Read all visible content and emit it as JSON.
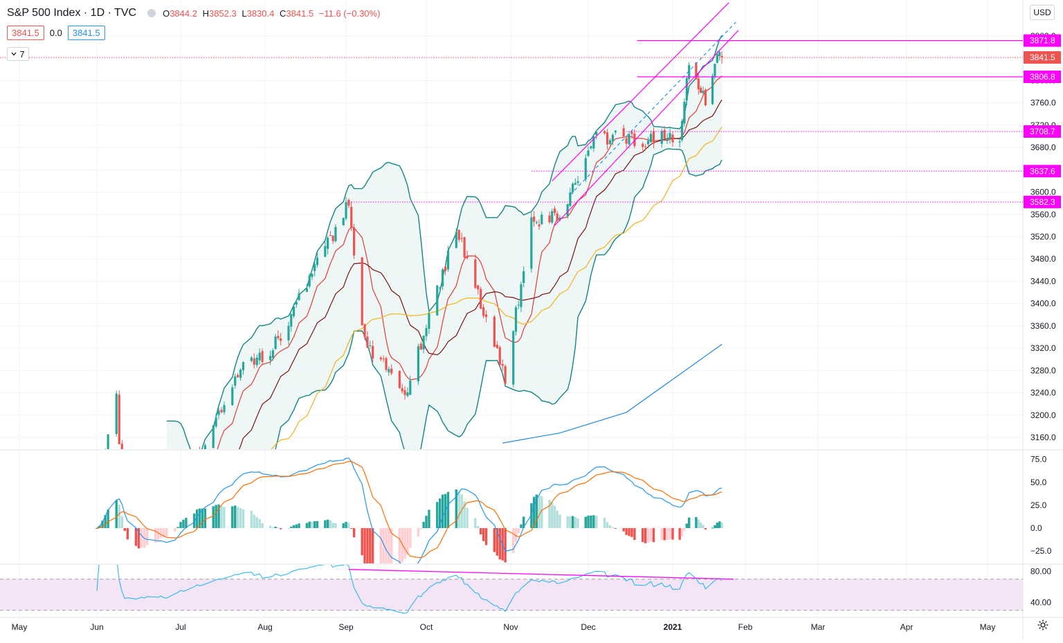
{
  "header": {
    "symbol": "S&P 500 Index · 1D · TVC",
    "open_label": "O",
    "open": "3844.2",
    "high_label": "H",
    "high": "3852.3",
    "low_label": "L",
    "low": "3830.4",
    "close_label": "C",
    "close": "3841.5",
    "change": "−11.6 (−0.30%)",
    "bid": "3841.5",
    "spread": "0.0",
    "ask": "3841.5",
    "indicators_count": "7",
    "currency": "USD"
  },
  "colors": {
    "up": "#26a69a",
    "down": "#ef5350",
    "magenta": "#ff00ff",
    "bb": "#138484",
    "bb_fill": "#e8f4f2",
    "ma_fast": "#e53935",
    "ma_mid": "#7b1010",
    "ma_slow": "#f2b21a",
    "ma_200": "#1e88e5",
    "macd": "#2196f3",
    "signal": "#ff6d00",
    "rsi": "#29b6f6",
    "rsi_band": "#f3e5f5"
  },
  "chart_data": {
    "type": "candlestick",
    "y_range": [
      3150,
      3900
    ],
    "price_ticks": [
      "3160.0",
      "3200.0",
      "3240.0",
      "3280.0",
      "3320.0",
      "3360.0",
      "3400.0",
      "3440.0",
      "3480.0",
      "3520.0",
      "3560.0",
      "3600.0",
      "3640.0",
      "3680.0",
      "3720.0",
      "3760.0",
      "3800.0",
      "3840.0",
      "3880.0"
    ],
    "price_labels": [
      {
        "value": 3871.8,
        "text": "3871.8",
        "color": "#ff00ff",
        "line": "solid"
      },
      {
        "value": 3841.5,
        "text": "3841.5",
        "color": "#ef5350",
        "line": "dotted"
      },
      {
        "value": 3806.8,
        "text": "3806.8",
        "color": "#ff00ff",
        "line": "solid"
      },
      {
        "value": 3708.7,
        "text": "3708.7",
        "color": "#ff00ff",
        "line": "dotted"
      },
      {
        "value": 3637.6,
        "text": "3637.6",
        "color": "#ff00ff",
        "line": "dotted"
      },
      {
        "value": 3582.3,
        "text": "3582.3",
        "color": "#ff00ff",
        "line": "dotted"
      }
    ],
    "x_ticks": [
      "May",
      "Jun",
      "Jul",
      "Aug",
      "Sep",
      "Oct",
      "Nov",
      "Dec",
      "2021",
      "Feb",
      "Mar",
      "Apr",
      "May"
    ],
    "macd_range": [
      -30,
      80
    ],
    "macd_ticks": [
      "75.0",
      "50.0",
      "25.0",
      "0.0",
      "−25.0"
    ],
    "rsi_range": [
      30,
      85
    ],
    "rsi_ticks": [
      "80.00",
      "40.00"
    ],
    "rsi_band": [
      30,
      70
    ],
    "price_anchors": [
      [
        "2020-06-01",
        3055
      ],
      [
        "2020-06-08",
        3232
      ],
      [
        "2020-06-11",
        3002
      ],
      [
        "2020-06-26",
        3009
      ],
      [
        "2020-07-22",
        3276
      ],
      [
        "2020-08-05",
        3327
      ],
      [
        "2020-09-02",
        3580
      ],
      [
        "2020-09-08",
        3331
      ],
      [
        "2020-09-23",
        3237
      ],
      [
        "2020-10-12",
        3535
      ],
      [
        "2020-10-30",
        3270
      ],
      [
        "2020-11-09",
        3550
      ],
      [
        "2020-11-20",
        3557
      ],
      [
        "2020-12-04",
        3699
      ],
      [
        "2020-12-21",
        3694
      ],
      [
        "2021-01-04",
        3700
      ],
      [
        "2021-01-08",
        3824
      ],
      [
        "2021-01-11",
        3799
      ],
      [
        "2021-01-15",
        3768
      ],
      [
        "2021-01-21",
        3853
      ],
      [
        "2021-01-22",
        3841.5
      ]
    ],
    "ma200_anchors": [
      [
        "2020-10-29",
        3150
      ],
      [
        "2020-11-20",
        3168
      ],
      [
        "2020-12-15",
        3205
      ],
      [
        "2021-01-22",
        3327
      ]
    ],
    "channels": [
      {
        "from": [
          "2020-11-17",
          3620
        ],
        "to": [
          "2021-01-25",
          3940
        ],
        "color": "#ff00ff",
        "dash": false
      },
      {
        "from": [
          "2020-11-18",
          3540
        ],
        "to": [
          "2021-01-29",
          3890
        ],
        "color": "#ff00ff",
        "dash": false
      },
      {
        "from": [
          "2020-11-24",
          3595
        ],
        "to": [
          "2021-01-28",
          3905
        ],
        "color": "#2196f3",
        "dash": true
      }
    ],
    "rsi_trend": {
      "from": [
        "2020-09-02",
        82.5
      ],
      "to": [
        "2021-01-27",
        70.0
      ],
      "color": "#ff00ff"
    }
  }
}
